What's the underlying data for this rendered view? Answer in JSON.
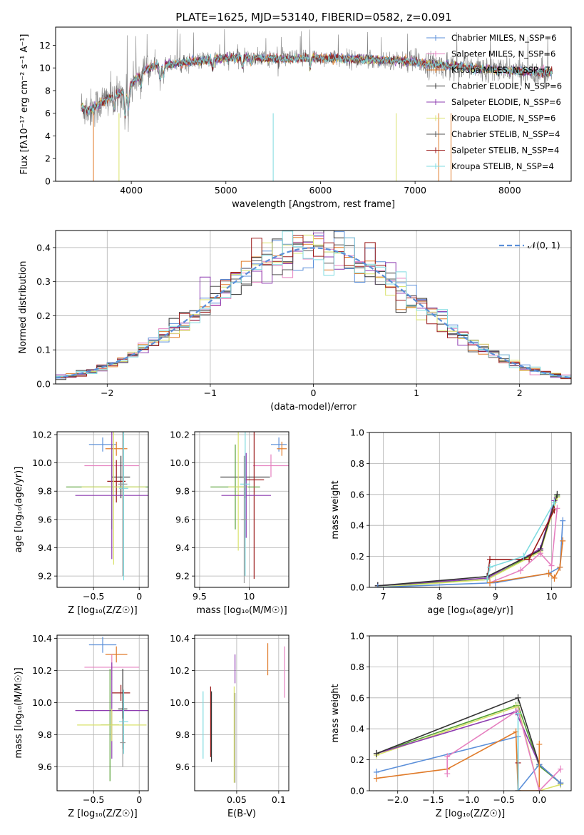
{
  "figure_title": "PLATE=1625, MJD=53140, FIBERID=0582, z=0.091",
  "colors": {
    "gray": "#808080",
    "teal": "#7fdbe0",
    "orange": "#e07b2a",
    "purple": "#8e3cb0",
    "yellow": "#d9e26a",
    "blue": "#5b8fd9",
    "pink": "#e680c0",
    "darkred": "#9b1b1b",
    "black": "#333333",
    "green": "#55a033"
  },
  "chart_data": [
    {
      "id": "spectrum",
      "type": "line",
      "xlabel": "wavelength [Angstrom, rest frame]",
      "ylabel": "Flux [fλ10⁻¹⁷ erg cm⁻² s⁻¹ A⁻¹]",
      "xlim": [
        3200,
        8650
      ],
      "ylim": [
        0,
        13.6
      ],
      "xticks": [
        4000,
        5000,
        6000,
        7000,
        8000
      ],
      "yticks": [
        0,
        2,
        4,
        6,
        8,
        10,
        12
      ],
      "grid": false,
      "legend_position": "right",
      "continuum": {
        "x": [
          3450,
          3550,
          3650,
          3750,
          3850,
          3950,
          4050,
          4150,
          4300,
          4500,
          4700,
          4900,
          5100,
          5300,
          5500,
          5700,
          5900,
          6100,
          6300,
          6500,
          6700,
          6900,
          7100,
          7300,
          7500,
          7700,
          7900,
          8100,
          8300,
          8450
        ],
        "y": [
          6.6,
          6.3,
          6.7,
          7.3,
          7.6,
          8.0,
          9.0,
          9.9,
          10.3,
          10.4,
          10.6,
          10.8,
          10.9,
          10.9,
          10.8,
          10.8,
          10.9,
          10.9,
          10.8,
          10.7,
          10.7,
          10.6,
          10.4,
          10.2,
          10.1,
          9.9,
          9.8,
          9.7,
          9.6,
          9.6
        ]
      },
      "series": [
        {
          "name": "Chabrier MILES, N_SSP=6",
          "color": "#5b8fd9"
        },
        {
          "name": "Salpeter MILES, N_SSP=6",
          "color": "#e680c0"
        },
        {
          "name": "Kroupa MILES, N_SSP=7",
          "color": "#e07b2a"
        },
        {
          "name": "Chabrier ELODIE, N_SSP=6",
          "color": "#333333"
        },
        {
          "name": "Salpeter ELODIE, N_SSP=6",
          "color": "#8e3cb0"
        },
        {
          "name": "Kroupa ELODIE, N_SSP=6",
          "color": "#d9e26a"
        },
        {
          "name": "Chabrier STELIB, N_SSP=4",
          "color": "#555555"
        },
        {
          "name": "Salpeter STELIB, N_SSP=4",
          "color": "#9b1b1b"
        },
        {
          "name": "Kroupa STELIB, N_SSP=4",
          "color": "#7fdbe0"
        }
      ]
    },
    {
      "id": "residuals",
      "type": "line",
      "xlabel": "(data-model)/error",
      "ylabel": "Normed distribution",
      "xlim": [
        -2.5,
        2.5
      ],
      "ylim": [
        0,
        0.45
      ],
      "xticks": [
        -2,
        -1,
        0,
        1,
        2
      ],
      "yticks": [
        0.0,
        0.1,
        0.2,
        0.3,
        0.4
      ],
      "grid": true,
      "legend_position": "top-right",
      "gaussian_label": "𝒩(0, 1)"
    },
    {
      "id": "age_vs_Z",
      "type": "scatter",
      "xlabel": "Z [log₁₀(Z/Z☉)]",
      "ylabel": "age  [log₁₀(age/yr)]",
      "xlim": [
        -0.9,
        0.1
      ],
      "ylim": [
        9.12,
        10.22
      ],
      "xticks": [
        -0.5,
        0.0
      ],
      "yticks": [
        9.2,
        9.4,
        9.6,
        9.8,
        10.0,
        10.2
      ],
      "grid": true,
      "points": [
        {
          "x": -0.4,
          "y": 10.13,
          "xerr": 0.15,
          "yerr": 0.05,
          "color": "#5b8fd9"
        },
        {
          "x": -0.25,
          "y": 10.1,
          "xerr": 0.12,
          "yerr": 0.05,
          "color": "#e07b2a"
        },
        {
          "x": -0.3,
          "y": 9.98,
          "xerr": 0.3,
          "yerr": 0.08,
          "color": "#e680c0"
        },
        {
          "x": -0.2,
          "y": 9.9,
          "xerr": 0.1,
          "yerr": 0.15,
          "color": "#333333"
        },
        {
          "x": -0.25,
          "y": 9.87,
          "xerr": 0.1,
          "yerr": 0.15,
          "color": "#9b1b1b"
        },
        {
          "x": -0.3,
          "y": 9.83,
          "xerr": 0.5,
          "yerr": 0.3,
          "color": "#55a033"
        },
        {
          "x": -0.28,
          "y": 9.83,
          "xerr": 0.35,
          "yerr": 0.55,
          "color": "#d9e26a"
        },
        {
          "x": -0.3,
          "y": 9.77,
          "xerr": 0.4,
          "yerr": 0.45,
          "color": "#8e3cb0"
        },
        {
          "x": -0.17,
          "y": 9.82,
          "xerr": 0.05,
          "yerr": 0.65,
          "color": "#7fdbe0"
        },
        {
          "x": -0.18,
          "y": 9.85,
          "xerr": 0.05,
          "yerr": 0.65,
          "color": "#999999"
        }
      ]
    },
    {
      "id": "age_vs_mass",
      "type": "scatter",
      "xlabel": "mass [log₁₀(M/M☉)]",
      "ylabel": "",
      "xlim": [
        9.45,
        10.4
      ],
      "ylim": [
        9.12,
        10.22
      ],
      "xticks": [
        9.5,
        10.0
      ],
      "yticks": [
        9.2,
        9.4,
        9.6,
        9.8,
        10.0,
        10.2
      ],
      "grid": true,
      "points": [
        {
          "x": 10.3,
          "y": 10.13,
          "xerr": 0.08,
          "yerr": 0.05,
          "color": "#5b8fd9"
        },
        {
          "x": 10.33,
          "y": 10.1,
          "xerr": 0.05,
          "yerr": 0.05,
          "color": "#e07b2a"
        },
        {
          "x": 10.22,
          "y": 9.98,
          "xerr": 0.18,
          "yerr": 0.08,
          "color": "#e680c0"
        },
        {
          "x": 9.96,
          "y": 9.9,
          "xerr": 0.25,
          "yerr": 0.15,
          "color": "#333333"
        },
        {
          "x": 10.05,
          "y": 9.88,
          "xerr": 0.1,
          "yerr": 0.7,
          "color": "#9b1b1b"
        },
        {
          "x": 9.86,
          "y": 9.83,
          "xerr": 0.25,
          "yerr": 0.3,
          "color": "#55a033"
        },
        {
          "x": 9.89,
          "y": 9.83,
          "xerr": 0.1,
          "yerr": 0.45,
          "color": "#d9e26a"
        },
        {
          "x": 9.97,
          "y": 9.77,
          "xerr": 0.25,
          "yerr": 0.3,
          "color": "#8e3cb0"
        },
        {
          "x": 9.96,
          "y": 9.85,
          "xerr": 0.05,
          "yerr": 0.65,
          "color": "#7fdbe0"
        },
        {
          "x": 9.95,
          "y": 9.6,
          "xerr": 0.03,
          "yerr": 0.45,
          "color": "#999999"
        }
      ]
    },
    {
      "id": "weight_vs_age",
      "type": "line",
      "xlabel": "age  [log₁₀(age/yr)]",
      "ylabel": "mass weight",
      "xlim": [
        6.75,
        10.35
      ],
      "ylim": [
        0,
        1.0
      ],
      "xticks": [
        7,
        8,
        9,
        10
      ],
      "yticks": [
        0.0,
        0.2,
        0.4,
        0.6,
        0.8,
        1.0
      ],
      "grid": true,
      "series": [
        {
          "color": "#55a033",
          "x": [
            6.9,
            8.85,
            9.8,
            10.1
          ],
          "y": [
            0.01,
            0.05,
            0.24,
            0.59
          ]
        },
        {
          "color": "#d9e26a",
          "x": [
            6.9,
            8.85,
            9.8,
            10.1
          ],
          "y": [
            0.0,
            0.05,
            0.23,
            0.58
          ]
        },
        {
          "color": "#8e3cb0",
          "x": [
            6.9,
            8.85,
            9.8,
            10.05
          ],
          "y": [
            0.01,
            0.06,
            0.25,
            0.56
          ]
        },
        {
          "color": "#333333",
          "x": [
            6.9,
            8.85,
            9.8,
            10.1
          ],
          "y": [
            0.01,
            0.07,
            0.24,
            0.6
          ]
        },
        {
          "color": "#9b1b1b",
          "x": [
            8.85,
            8.9,
            9.6,
            10.05
          ],
          "y": [
            0.05,
            0.18,
            0.18,
            0.5
          ]
        },
        {
          "color": "#7fdbe0",
          "x": [
            8.85,
            8.9,
            9.5,
            10.05
          ],
          "y": [
            0.05,
            0.13,
            0.2,
            0.55
          ]
        },
        {
          "color": "#5b8fd9",
          "x": [
            6.9,
            9.0,
            9.95,
            10.15,
            10.2
          ],
          "y": [
            0.0,
            0.03,
            0.09,
            0.13,
            0.43
          ]
        },
        {
          "color": "#e680c0",
          "x": [
            8.9,
            9.45,
            9.8,
            10.0,
            10.1
          ],
          "y": [
            0.03,
            0.11,
            0.22,
            0.14,
            0.51
          ]
        },
        {
          "color": "#e07b2a",
          "x": [
            8.9,
            9.95,
            10.05,
            10.15,
            10.2
          ],
          "y": [
            0.03,
            0.09,
            0.06,
            0.13,
            0.3
          ]
        }
      ]
    },
    {
      "id": "mass_vs_Z",
      "type": "scatter",
      "xlabel": "Z [log₁₀(Z/Z☉)]",
      "ylabel": "mass [log₁₀(M/M☉)]",
      "xlim": [
        -0.9,
        0.1
      ],
      "ylim": [
        9.45,
        10.42
      ],
      "xticks": [
        -0.5,
        0.0
      ],
      "yticks": [
        9.6,
        9.8,
        10.0,
        10.2,
        10.4
      ],
      "grid": true,
      "points": [
        {
          "x": -0.4,
          "y": 10.36,
          "xerr": 0.15,
          "yerr": 0.05,
          "color": "#5b8fd9"
        },
        {
          "x": -0.25,
          "y": 10.3,
          "xerr": 0.12,
          "yerr": 0.05,
          "color": "#e07b2a"
        },
        {
          "x": -0.3,
          "y": 10.22,
          "xerr": 0.3,
          "yerr": 0.08,
          "color": "#e680c0"
        },
        {
          "x": -0.2,
          "y": 10.06,
          "xerr": 0.1,
          "yerr": 0.05,
          "color": "#9b1b1b"
        },
        {
          "x": -0.18,
          "y": 9.96,
          "xerr": 0.05,
          "yerr": 0.25,
          "color": "#333333"
        },
        {
          "x": -0.3,
          "y": 9.95,
          "xerr": 0.4,
          "yerr": 0.3,
          "color": "#8e3cb0"
        },
        {
          "x": -0.32,
          "y": 9.86,
          "xerr": 0.1,
          "yerr": 0.35,
          "color": "#55a033"
        },
        {
          "x": -0.3,
          "y": 9.86,
          "xerr": 0.38,
          "yerr": 0.1,
          "color": "#d9e26a"
        },
        {
          "x": -0.17,
          "y": 9.88,
          "xerr": 0.05,
          "yerr": 0.2,
          "color": "#7fdbe0"
        },
        {
          "x": -0.18,
          "y": 9.75,
          "xerr": 0.03,
          "yerr": 0.15,
          "color": "#999999"
        }
      ]
    },
    {
      "id": "mass_vs_EBV",
      "type": "scatter",
      "xlabel": "E(B-V)",
      "ylabel": "",
      "xlim": [
        0.0,
        0.112
      ],
      "ylim": [
        9.45,
        10.42
      ],
      "xticks": [
        0.05,
        0.1
      ],
      "yticks": [
        9.6,
        9.8,
        10.0,
        10.2,
        10.4
      ],
      "grid": true,
      "points": [
        {
          "x": 0.048,
          "y": 10.21,
          "xerr": 0.0,
          "yerr": 0.09,
          "color": "#8e3cb0"
        },
        {
          "x": 0.087,
          "y": 10.27,
          "xerr": 0.0,
          "yerr": 0.1,
          "color": "#e07b2a"
        },
        {
          "x": 0.107,
          "y": 10.19,
          "xerr": 0.0,
          "yerr": 0.16,
          "color": "#e680c0"
        },
        {
          "x": 0.019,
          "y": 9.88,
          "xerr": 0.0,
          "yerr": 0.22,
          "color": "#9b1b1b"
        },
        {
          "x": 0.01,
          "y": 9.86,
          "xerr": 0.0,
          "yerr": 0.21,
          "color": "#7fdbe0"
        },
        {
          "x": 0.02,
          "y": 9.85,
          "xerr": 0.0,
          "yerr": 0.22,
          "color": "#333333"
        },
        {
          "x": 0.047,
          "y": 9.8,
          "xerr": 0.0,
          "yerr": 0.3,
          "color": "#d9e26a"
        },
        {
          "x": 0.048,
          "y": 9.78,
          "xerr": 0.0,
          "yerr": 0.28,
          "color": "#999999"
        }
      ]
    },
    {
      "id": "weight_vs_Z",
      "type": "line",
      "xlabel": "Z [log₁₀(Z/Z☉)]",
      "ylabel": "mass weight",
      "xlim": [
        -2.4,
        0.45
      ],
      "ylim": [
        0,
        1.0
      ],
      "xticks": [
        -2.0,
        -1.5,
        -1.0,
        -0.5,
        0.0
      ],
      "yticks": [
        0.0,
        0.2,
        0.4,
        0.6,
        0.8,
        1.0
      ],
      "grid": true,
      "series": [
        {
          "color": "#55a033",
          "x": [
            -2.3,
            -0.33,
            -0.3,
            0.0,
            0.3
          ],
          "y": [
            0.24,
            0.55,
            0.55,
            0.16,
            0.05
          ]
        },
        {
          "color": "#d9e26a",
          "x": [
            -2.3,
            -0.33,
            -0.3,
            0.0,
            0.3
          ],
          "y": [
            0.23,
            0.54,
            0.54,
            0.0,
            0.04
          ]
        },
        {
          "color": "#8e3cb0",
          "x": [
            -2.3,
            -0.33,
            0.0,
            0.3
          ],
          "y": [
            0.24,
            0.51,
            0.17,
            0.05
          ]
        },
        {
          "color": "#333333",
          "x": [
            -2.3,
            -0.3,
            0.0,
            0.3
          ],
          "y": [
            0.24,
            0.6,
            0.17,
            0.05
          ]
        },
        {
          "color": "#5b8fd9",
          "x": [
            -2.3,
            -0.3,
            -0.3,
            0.0,
            0.3
          ],
          "y": [
            0.12,
            0.35,
            0.0,
            0.17,
            0.05
          ]
        },
        {
          "color": "#e07b2a",
          "x": [
            -2.3,
            -1.3,
            -0.33,
            -0.3,
            0.0,
            0.0
          ],
          "y": [
            0.08,
            0.14,
            0.38,
            0.0,
            0.0,
            0.3
          ]
        },
        {
          "color": "#e680c0",
          "x": [
            -1.3,
            -1.3,
            -0.3,
            0.0,
            0.3
          ],
          "y": [
            0.11,
            0.22,
            0.52,
            0.0,
            0.14
          ]
        },
        {
          "color": "#9b1b1b",
          "x": [
            -0.3,
            -0.3
          ],
          "y": [
            0.0,
            0.18
          ]
        },
        {
          "color": "#7fdbe0",
          "x": [
            -0.3,
            -0.3
          ],
          "y": [
            0.0,
            0.5
          ]
        }
      ]
    }
  ]
}
